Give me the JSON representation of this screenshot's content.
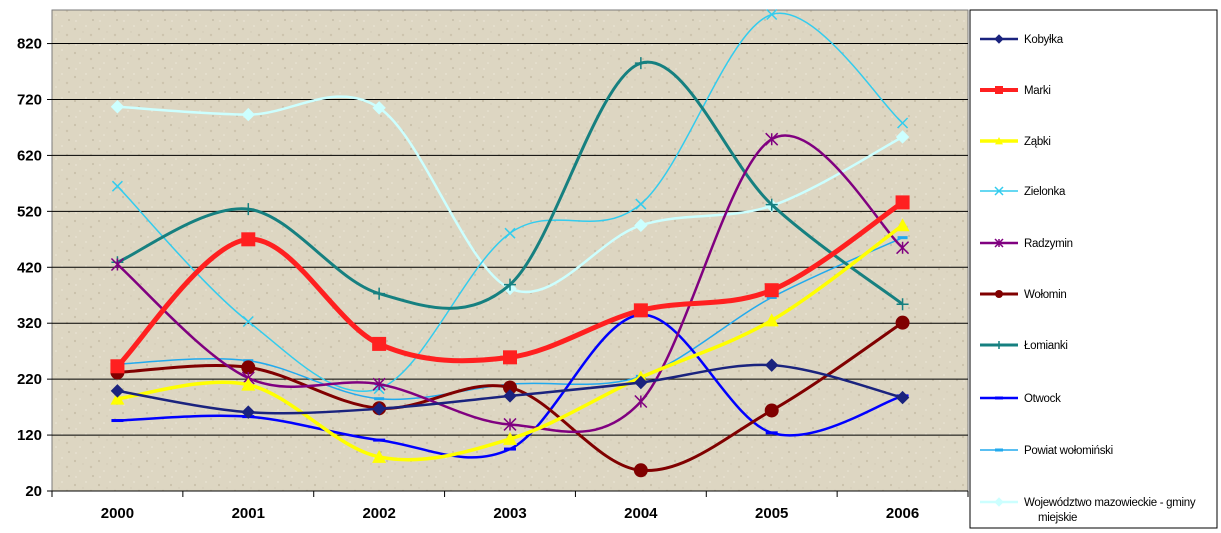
{
  "chart_data": {
    "type": "line",
    "title": "",
    "xlabel": "",
    "ylabel": "",
    "x": [
      "2000",
      "2001",
      "2002",
      "2003",
      "2004",
      "2005",
      "2006"
    ],
    "ylim": [
      20,
      880
    ],
    "yticks": [
      "20",
      "120",
      "220",
      "320",
      "420",
      "520",
      "620",
      "720",
      "820"
    ],
    "grid": "horizontal",
    "legend_position": "right",
    "smooth": true,
    "series": [
      {
        "name": "Kobyłka",
        "color": "#1a237e",
        "marker": "diamond",
        "values": [
          199,
          161,
          167,
          190,
          214,
          245,
          187
        ]
      },
      {
        "name": "Marki",
        "color": "#ff2020",
        "marker": "square",
        "values": [
          243,
          470,
          283,
          259,
          343,
          379,
          536
        ]
      },
      {
        "name": "Ząbki",
        "color": "#ffff00",
        "marker": "triangle",
        "values": [
          185,
          210,
          81,
          113,
          223,
          325,
          495
        ]
      },
      {
        "name": "Zielonka",
        "color": "#33ccee",
        "marker": "x",
        "values": [
          565,
          323,
          203,
          481,
          533,
          872,
          678
        ]
      },
      {
        "name": "Radzymin",
        "color": "#800080",
        "marker": "asterisk",
        "values": [
          425,
          222,
          211,
          139,
          180,
          649,
          455
        ]
      },
      {
        "name": "Wołomin",
        "color": "#800000",
        "marker": "circle",
        "values": [
          232,
          241,
          168,
          205,
          57,
          164,
          321
        ]
      },
      {
        "name": "Łomianki",
        "color": "#168080",
        "marker": "plus",
        "values": [
          429,
          524,
          373,
          389,
          785,
          532,
          354
        ]
      },
      {
        "name": "Otwock",
        "color": "#0000ff",
        "marker": "dash",
        "values": [
          146,
          153,
          111,
          95,
          335,
          124,
          190
        ]
      },
      {
        "name": "Powiat wołomiński",
        "color": "#22aaee",
        "marker": "dash",
        "values": [
          247,
          253,
          185,
          211,
          225,
          366,
          473
        ]
      },
      {
        "name": "Województwo mazowieckie - gminy miejskie",
        "color": "#ccffff",
        "marker": "diamond",
        "values": [
          707,
          693,
          705,
          382,
          495,
          530,
          653
        ]
      }
    ]
  }
}
